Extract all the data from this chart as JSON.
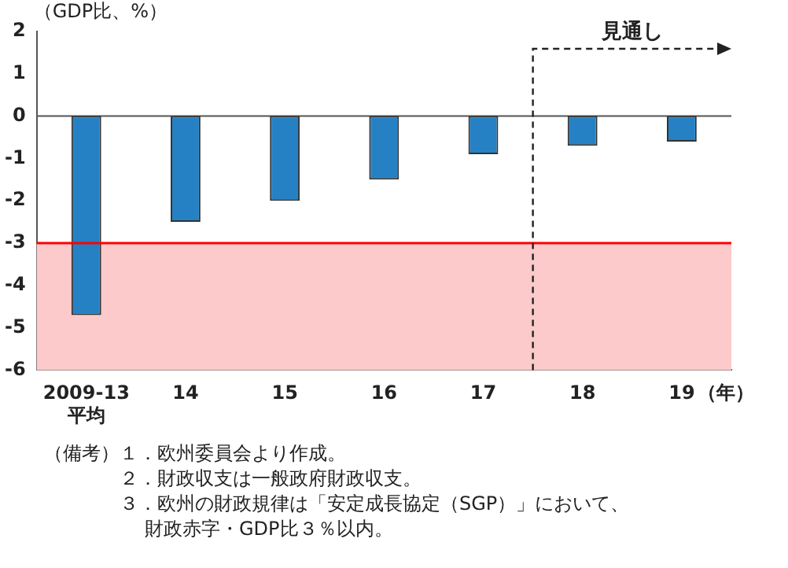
{
  "chart_data": {
    "type": "bar",
    "ylabel": "（GDP比、%）",
    "xlabel": "（年）",
    "categories": [
      "2009-13\n平均",
      "14",
      "15",
      "16",
      "17",
      "18",
      "19"
    ],
    "values": [
      -4.7,
      -2.5,
      -2.0,
      -1.5,
      -0.9,
      -0.7,
      -0.6
    ],
    "color": "#2581c4",
    "ylim": [
      -6,
      2
    ],
    "yticks": [
      -6,
      -5,
      -4,
      -3,
      -2,
      -1,
      0,
      1,
      2
    ],
    "grid": false,
    "legend": false,
    "ref_lines": [
      {
        "axis": "y",
        "value": -3,
        "color": "#ff0000"
      }
    ],
    "bands": [
      {
        "axis": "y",
        "from": -6,
        "to": -3,
        "color": "#fccaca"
      }
    ],
    "annotations": [
      "見通し",
      "（備考）",
      "１．欧州委員会より作成。",
      "２．財政収支は一般政府財政収支。",
      "３．欧州の財政規律は「安定成長協定（SGP）」において、財政赤字・GDP比３％以内。"
    ]
  }
}
